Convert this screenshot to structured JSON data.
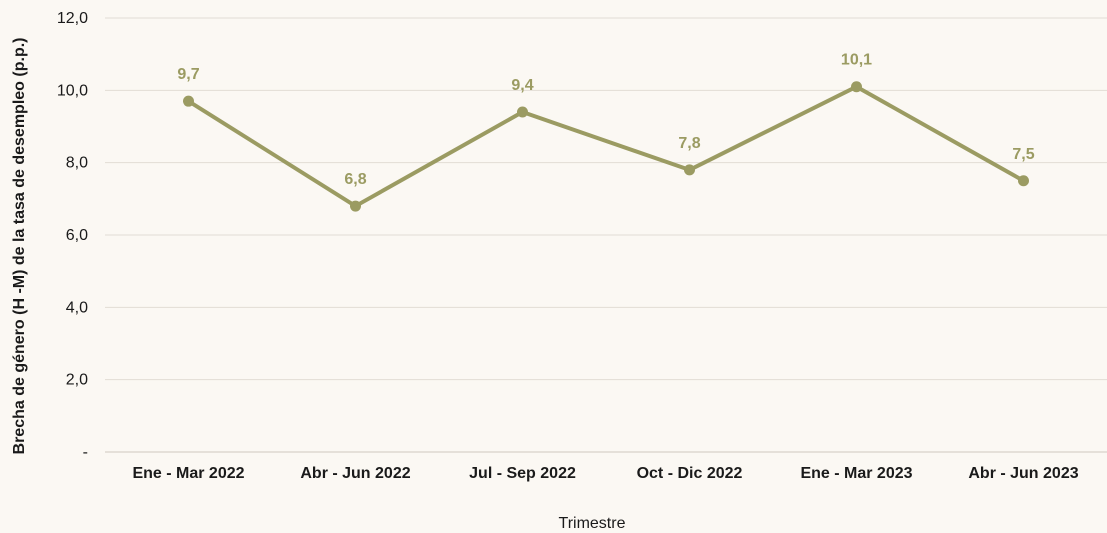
{
  "chart_data": {
    "type": "line",
    "categories": [
      "Ene - Mar 2022",
      "Abr - Jun 2022",
      "Jul - Sep 2022",
      "Oct - Dic 2022",
      "Ene - Mar 2023",
      "Abr - Jun 2023"
    ],
    "series": [
      {
        "values": [
          9.7,
          6.8,
          9.4,
          7.8,
          10.1,
          7.5
        ]
      }
    ],
    "data_labels": [
      "9,7",
      "6,8",
      "9,4",
      "7,8",
      "10,1",
      "7,5"
    ],
    "xlabel": "Trimestre",
    "ylabel": "Brecha de género (H -M) de la tasa de desempleo (p.p.)",
    "ylim": [
      0,
      12
    ],
    "y_ticks": [
      0,
      2,
      4,
      6,
      8,
      10,
      12
    ],
    "y_tick_labels": [
      "-",
      "2,0",
      "4,0",
      "6,0",
      "8,0",
      "10,0",
      "12,0"
    ],
    "grid": "horizontal",
    "legend": "none",
    "colors": {
      "line": "#9b9b62",
      "label": "#9b9b62",
      "grid": "#e2ddd4",
      "axis": "#cfc9bf",
      "background": "#fbf8f3"
    }
  }
}
